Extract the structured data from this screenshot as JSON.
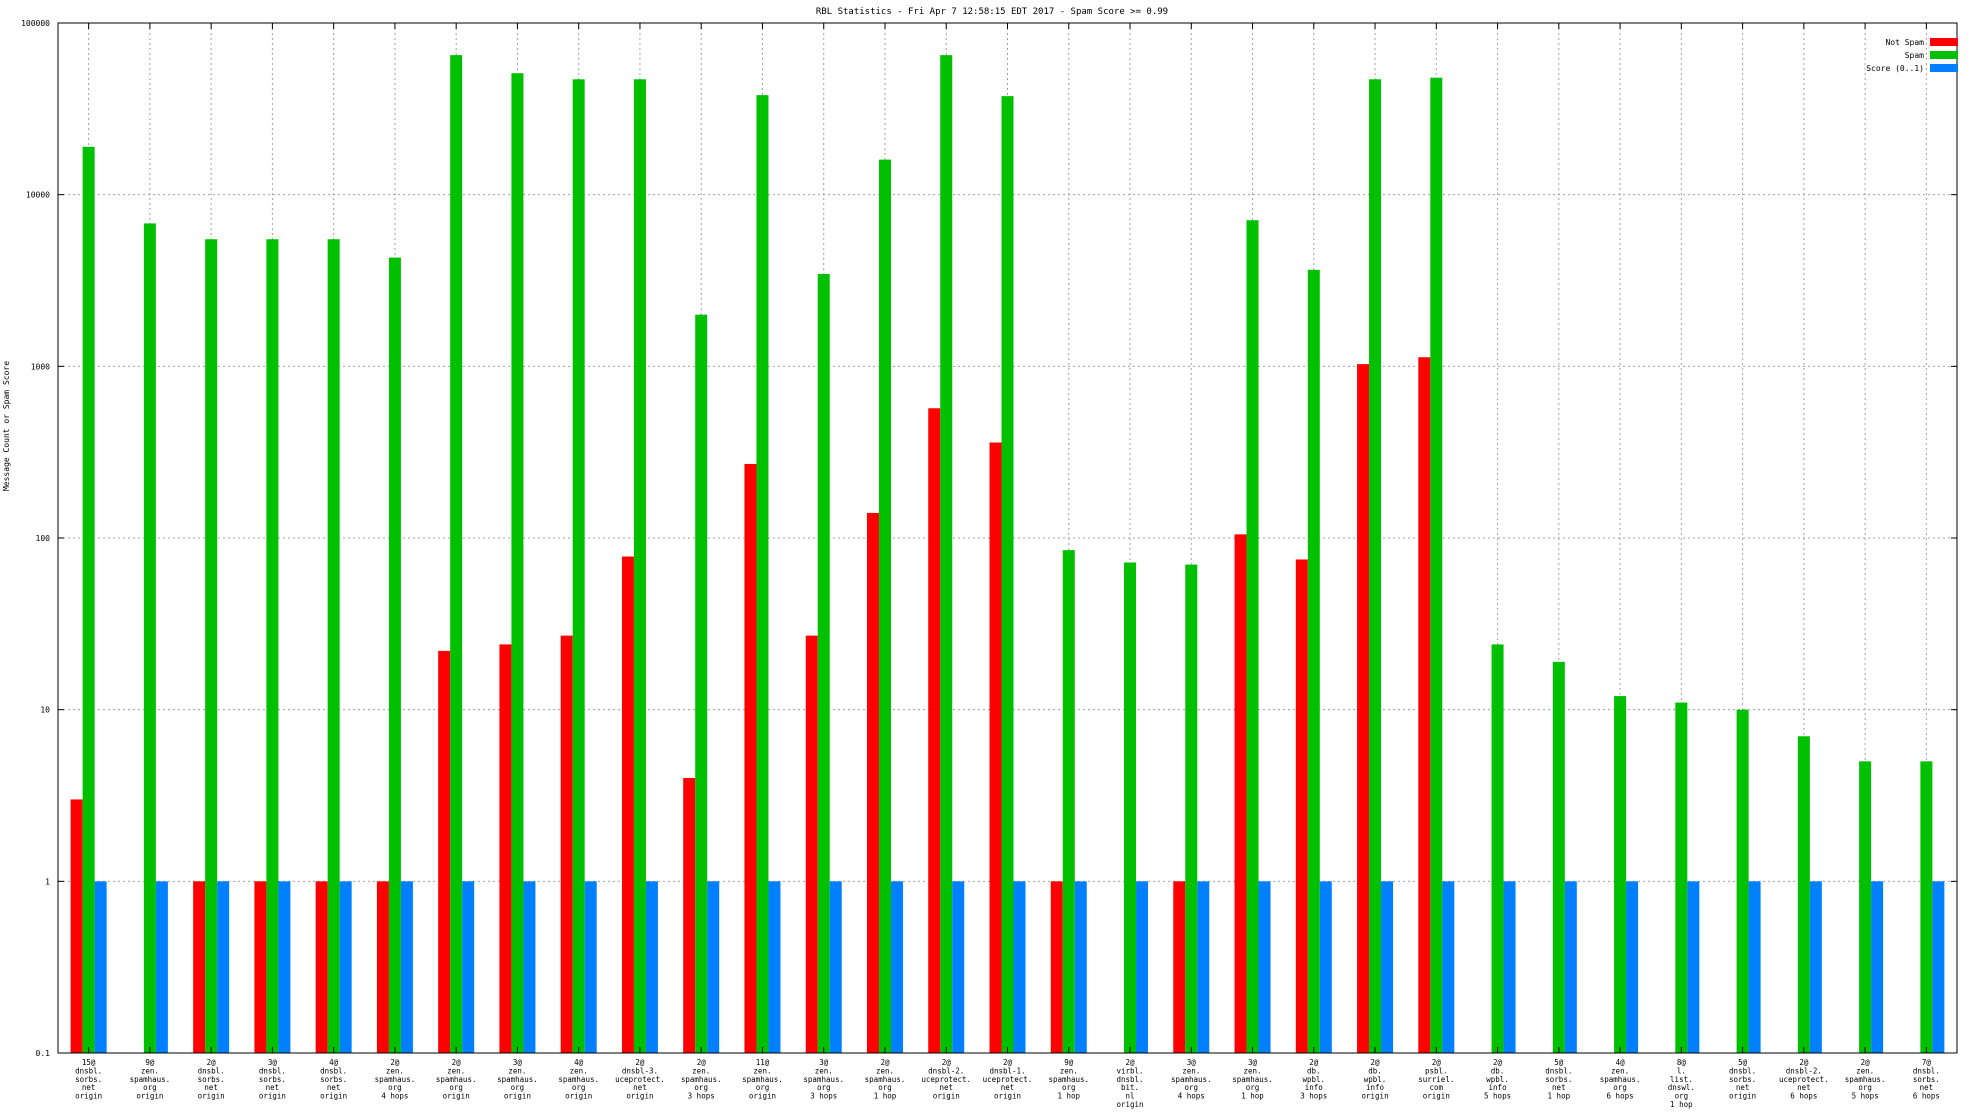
{
  "chart_data": {
    "type": "bar",
    "title": "RBL Statistics - Fri Apr  7 12:58:15 EDT 2017 - Spam Score >= 0.99",
    "ylabel": "Message Count or Spam Score",
    "xlabel": "",
    "yscale": "log",
    "ylim": [
      0.1,
      100000
    ],
    "yticks": [
      "0.1",
      "1",
      "10",
      "100",
      "1000",
      "10000",
      "100000"
    ],
    "grid": true,
    "legend_position": "top-right",
    "colors": {
      "Not Spam": "#ff0000",
      "Spam": "#00c000",
      "Score (0..1)": "#0080ff"
    },
    "categories": [
      [
        "15@",
        "dnsbl.",
        "sorbs.",
        "net",
        "origin"
      ],
      [
        "9@",
        "zen.",
        "spamhaus.",
        "org",
        "origin"
      ],
      [
        "2@",
        "dnsbl.",
        "sorbs.",
        "net",
        "origin"
      ],
      [
        "3@",
        "dnsbl.",
        "sorbs.",
        "net",
        "origin"
      ],
      [
        "4@",
        "dnsbl.",
        "sorbs.",
        "net",
        "origin"
      ],
      [
        "2@",
        "zen.",
        "spamhaus.",
        "org",
        "4 hops"
      ],
      [
        "2@",
        "zen.",
        "spamhaus.",
        "org",
        "origin"
      ],
      [
        "3@",
        "zen.",
        "spamhaus.",
        "org",
        "origin"
      ],
      [
        "4@",
        "zen.",
        "spamhaus.",
        "org",
        "origin"
      ],
      [
        "2@",
        "dnsbl-3.",
        "uceprotect.",
        "net",
        "origin"
      ],
      [
        "2@",
        "zen.",
        "spamhaus.",
        "org",
        "3 hops"
      ],
      [
        "11@",
        "zen.",
        "spamhaus.",
        "org",
        "origin"
      ],
      [
        "3@",
        "zen.",
        "spamhaus.",
        "org",
        "3 hops"
      ],
      [
        "2@",
        "zen.",
        "spamhaus.",
        "org",
        "1 hop"
      ],
      [
        "2@",
        "dnsbl-2.",
        "uceprotect.",
        "net",
        "origin"
      ],
      [
        "2@",
        "dnsbl-1.",
        "uceprotect.",
        "net",
        "origin"
      ],
      [
        "9@",
        "zen.",
        "spamhaus.",
        "org",
        "1 hop"
      ],
      [
        "2@",
        "virbl.",
        "dnsbl.",
        "bit.",
        "nl",
        "origin"
      ],
      [
        "3@",
        "zen.",
        "spamhaus.",
        "org",
        "4 hops"
      ],
      [
        "3@",
        "zen.",
        "spamhaus.",
        "org",
        "1 hop"
      ],
      [
        "2@",
        "db.",
        "wpbl.",
        "info",
        "3 hops"
      ],
      [
        "2@",
        "db.",
        "wpbl.",
        "info",
        "origin"
      ],
      [
        "2@",
        "psbl.",
        "surriel.",
        "com",
        "origin"
      ],
      [
        "2@",
        "db.",
        "wpbl.",
        "info",
        "5 hops"
      ],
      [
        "5@",
        "dnsbl.",
        "sorbs.",
        "net",
        "1 hop"
      ],
      [
        "4@",
        "zen.",
        "spamhaus.",
        "org",
        "6 hops"
      ],
      [
        "8@",
        "l.",
        "list.",
        "dnswl.",
        "org",
        "1 hop"
      ],
      [
        "5@",
        "dnsbl.",
        "sorbs.",
        "net",
        "origin"
      ],
      [
        "2@",
        "dnsbl-2.",
        "uceprotect.",
        "net",
        "6 hops"
      ],
      [
        "2@",
        "zen.",
        "spamhaus.",
        "org",
        "5 hops"
      ],
      [
        "7@",
        "dnsbl.",
        "sorbs.",
        "net",
        "6 hops"
      ]
    ],
    "series": [
      {
        "name": "Not Spam",
        "values": [
          3,
          null,
          1,
          1,
          1,
          1,
          22,
          24,
          27,
          78,
          4,
          270,
          27,
          140,
          570,
          360,
          1,
          null,
          1,
          105,
          75,
          1030,
          1130,
          null,
          null,
          null,
          null,
          null,
          null,
          null,
          null
        ]
      },
      {
        "name": "Spam",
        "values": [
          19000,
          6800,
          5500,
          5500,
          5500,
          4300,
          65000,
          51000,
          47000,
          47000,
          2000,
          38000,
          3450,
          16000,
          65000,
          37500,
          85,
          72,
          70,
          7100,
          3650,
          47000,
          48000,
          24,
          19,
          12,
          11,
          10,
          7,
          5,
          5
        ]
      },
      {
        "name": "Score (0..1)",
        "values": [
          1,
          1,
          1,
          1,
          1,
          1,
          1,
          1,
          1,
          1,
          1,
          1,
          1,
          1,
          1,
          1,
          1,
          1,
          1,
          1,
          1,
          1,
          1,
          1,
          1,
          1,
          1,
          1,
          1,
          1,
          1
        ]
      }
    ]
  }
}
